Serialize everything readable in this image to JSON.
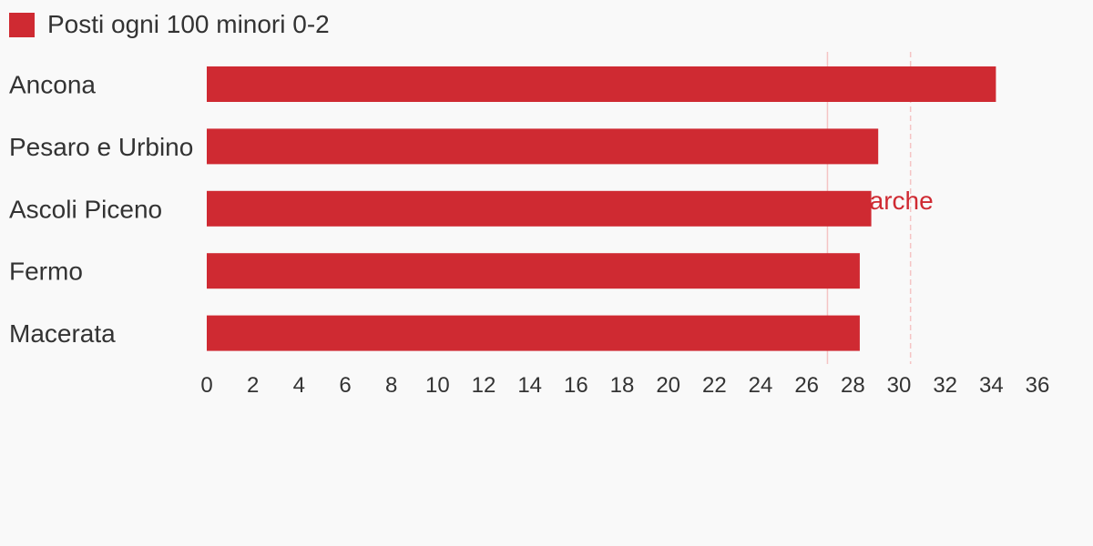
{
  "chart_data": {
    "type": "bar",
    "orientation": "horizontal",
    "title": "",
    "xlabel": "",
    "ylabel": "",
    "categories": [
      "Ancona",
      "Pesaro e Urbino",
      "Ascoli Piceno",
      "Fermo",
      "Macerata"
    ],
    "series": [
      {
        "name": "Posti ogni 100 minori 0-2",
        "values": [
          34.2,
          29.1,
          28.8,
          28.3,
          28.3
        ]
      }
    ],
    "xlim": [
      0,
      36
    ],
    "ticks": [
      "0",
      "2",
      "4",
      "6",
      "8",
      "10",
      "12",
      "14",
      "16",
      "18",
      "20",
      "22",
      "24",
      "26",
      "28",
      "30",
      "32",
      "34",
      "36"
    ],
    "reference_lines": [
      {
        "value": 26.9,
        "label": "",
        "style": "solid"
      },
      {
        "value": 30.5,
        "label": "arche",
        "style": "dashed"
      }
    ],
    "legend_position": "top-left",
    "grid": false,
    "colors": {
      "bar": "#cf2a32",
      "ref_line": "#f5c4c4",
      "ref_label": "#cf2a32",
      "text": "#333333"
    }
  }
}
